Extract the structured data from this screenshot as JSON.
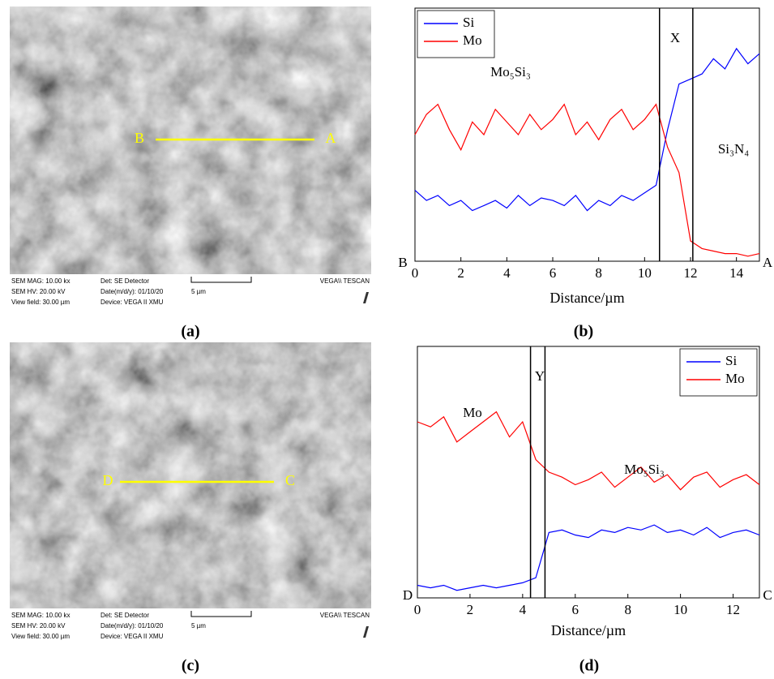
{
  "images": [
    {
      "caption": "(a)",
      "left_label": "B",
      "right_label": "A",
      "info": [
        "SEM MAG: 10.00 kx",
        "Det: SE Detector",
        "SEM HV: 20.00 kV",
        "Date(m/d/y): 01/10/20",
        "View field: 30.00 µm",
        "Device: VEGA II XMU"
      ],
      "scale": "5 µm",
      "brand": "VEGA\\\\ TESCAN"
    },
    {
      "caption": "(c)",
      "left_label": "D",
      "right_label": "C",
      "info": [
        "SEM MAG: 10.00 kx",
        "Det: SE Detector",
        "SEM HV: 20.00 kV",
        "Date(m/d/y): 01/10/20",
        "View field: 30.00 µm",
        "Device: VEGA II XMU"
      ],
      "scale": "5 µm",
      "brand": "VEGA\\\\ TESCAN"
    }
  ],
  "chart_data": [
    {
      "type": "line",
      "caption": "(b)",
      "xlabel": "Distance/µm",
      "left_end_label": "B",
      "right_end_label": "A",
      "annotations": [
        "X",
        "Mo₅Si₃",
        "Si₃N₄"
      ],
      "legend": "upper left",
      "boundaries": [
        10.65,
        12.1
      ],
      "xlim": [
        0,
        15
      ],
      "xticks": [
        0,
        2,
        4,
        6,
        8,
        10,
        12,
        14
      ],
      "ylim": [
        0,
        100
      ],
      "x": [
        0,
        0.5,
        1,
        1.5,
        2,
        2.5,
        3,
        3.5,
        4,
        4.5,
        5,
        5.5,
        6,
        6.5,
        7,
        7.5,
        8,
        8.5,
        9,
        9.5,
        10,
        10.5,
        11,
        11.5,
        12,
        12.5,
        13,
        13.5,
        14,
        14.5,
        15
      ],
      "series": [
        {
          "name": "Si",
          "color": "#0000ff",
          "values": [
            28,
            24,
            26,
            22,
            24,
            20,
            22,
            24,
            21,
            26,
            22,
            25,
            24,
            22,
            26,
            20,
            24,
            22,
            26,
            24,
            27,
            30,
            52,
            70,
            72,
            74,
            80,
            76,
            84,
            78,
            82
          ]
        },
        {
          "name": "Mo",
          "color": "#ff0000",
          "values": [
            50,
            58,
            62,
            52,
            44,
            55,
            50,
            60,
            55,
            50,
            58,
            52,
            56,
            62,
            50,
            55,
            48,
            56,
            60,
            52,
            56,
            62,
            45,
            35,
            8,
            5,
            4,
            3,
            3,
            2,
            3
          ]
        }
      ]
    },
    {
      "type": "line",
      "caption": "(d)",
      "xlabel": "Distance/µm",
      "left_end_label": "D",
      "right_end_label": "C",
      "annotations": [
        "Y",
        "Mo",
        "Mo₅Si₃"
      ],
      "legend": "upper right",
      "boundaries": [
        4.3,
        4.85
      ],
      "xlim": [
        0,
        13
      ],
      "xticks": [
        0,
        2,
        4,
        6,
        8,
        10,
        12
      ],
      "ylim": [
        0,
        100
      ],
      "x": [
        0,
        0.5,
        1,
        1.5,
        2,
        2.5,
        3,
        3.5,
        4,
        4.5,
        5,
        5.5,
        6,
        6.5,
        7,
        7.5,
        8,
        8.5,
        9,
        9.5,
        10,
        10.5,
        11,
        11.5,
        12,
        12.5,
        13
      ],
      "series": [
        {
          "name": "Si",
          "color": "#0000ff",
          "values": [
            5,
            4,
            5,
            3,
            4,
            5,
            4,
            5,
            6,
            8,
            26,
            27,
            25,
            24,
            27,
            26,
            28,
            27,
            29,
            26,
            27,
            25,
            28,
            24,
            26,
            27,
            25
          ]
        },
        {
          "name": "Mo",
          "color": "#ff0000",
          "values": [
            70,
            68,
            72,
            62,
            66,
            70,
            74,
            64,
            70,
            55,
            50,
            48,
            45,
            47,
            50,
            44,
            48,
            52,
            46,
            49,
            43,
            48,
            50,
            44,
            47,
            49,
            45
          ]
        }
      ]
    }
  ]
}
